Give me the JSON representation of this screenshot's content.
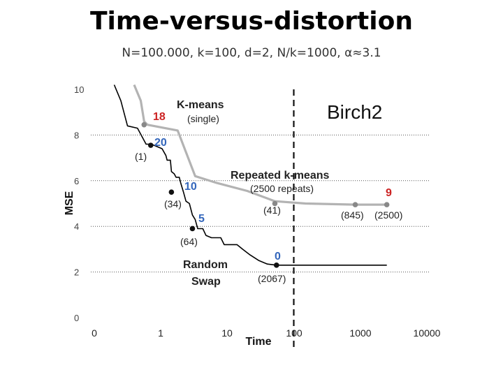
{
  "slide": {
    "title": "Time-versus-distortion",
    "subtitle": "N=100.000, k=100, d=2, N/k=1000, α≈3.1"
  },
  "chart_data": {
    "type": "line",
    "dataset_label": "Birch2",
    "xlabel": "Time",
    "ylabel": "MSE",
    "x_scale": "log",
    "x_ticks": [
      0,
      1,
      10,
      100,
      1000,
      10000
    ],
    "x_tick_labels": [
      "0",
      "1",
      "10",
      "100",
      "1000",
      "10000"
    ],
    "y_ticks": [
      0,
      2,
      4,
      6,
      8,
      10
    ],
    "y_tick_labels": [
      "0",
      "2",
      "4",
      "6",
      "8",
      "10"
    ],
    "ylim": [
      0,
      10
    ],
    "y_gridlines": [
      2,
      4,
      6,
      8
    ],
    "reference_line": {
      "x": 100,
      "style": "dashed"
    },
    "series": [
      {
        "name": "K-means (single) / Repeated k-means",
        "color": "#b3b3b3",
        "points": [
          [
            0.6,
            10.2
          ],
          [
            0.7,
            9.5
          ],
          [
            0.75,
            8.6
          ],
          [
            0.8,
            8.45
          ],
          [
            1.8,
            8.2
          ],
          [
            3.3,
            6.2
          ],
          [
            7,
            5.9
          ],
          [
            20,
            5.55
          ],
          [
            52,
            5.1
          ],
          [
            150,
            5.0
          ],
          [
            840,
            4.95
          ],
          [
            2500,
            4.95
          ]
        ]
      },
      {
        "name": "Random Swap",
        "color": "#000000",
        "points": [
          [
            0.3,
            10.2
          ],
          [
            0.4,
            9.5
          ],
          [
            0.5,
            8.4
          ],
          [
            0.65,
            8.3
          ],
          [
            0.78,
            7.6
          ],
          [
            0.85,
            7.6
          ],
          [
            0.9,
            7.55
          ],
          [
            1.05,
            7.4
          ],
          [
            1.2,
            7.1
          ],
          [
            1.25,
            6.9
          ],
          [
            1.4,
            6.9
          ],
          [
            1.45,
            6.4
          ],
          [
            1.6,
            6.3
          ],
          [
            1.7,
            6.15
          ],
          [
            1.9,
            6.15
          ],
          [
            2.0,
            5.9
          ],
          [
            2.2,
            5.5
          ],
          [
            2.4,
            5.1
          ],
          [
            2.7,
            5.0
          ],
          [
            3.0,
            4.5
          ],
          [
            3.3,
            4.3
          ],
          [
            3.6,
            3.9
          ],
          [
            4.3,
            3.9
          ],
          [
            4.8,
            3.6
          ],
          [
            5.8,
            3.5
          ],
          [
            8,
            3.5
          ],
          [
            9,
            3.2
          ],
          [
            14,
            3.2
          ],
          [
            17,
            3.0
          ],
          [
            22,
            2.75
          ],
          [
            30,
            2.5
          ],
          [
            40,
            2.35
          ],
          [
            55,
            2.3
          ],
          [
            2500,
            2.3
          ]
        ]
      }
    ],
    "annotations": [
      {
        "text": "K-means",
        "color": "#222222",
        "weight": "bold"
      },
      {
        "text": "(single)",
        "color": "#222222",
        "weight": "normal"
      },
      {
        "text": "Repeated k-means",
        "color": "#222222",
        "weight": "bold"
      },
      {
        "text": "(2500 repeats)",
        "color": "#222222",
        "weight": "normal"
      },
      {
        "text": "Random",
        "color": "#222222",
        "weight": "bold"
      },
      {
        "text": "Swap",
        "color": "#222222",
        "weight": "bold"
      },
      {
        "text": "18",
        "color": "#cc2222",
        "weight": "bold"
      },
      {
        "text": "20",
        "color": "#3366bb",
        "weight": "bold"
      },
      {
        "text": "(1)",
        "color": "#222222",
        "weight": "normal"
      },
      {
        "text": "10",
        "color": "#3366bb",
        "weight": "bold"
      },
      {
        "text": "(34)",
        "color": "#222222",
        "weight": "normal"
      },
      {
        "text": "5",
        "color": "#3366bb",
        "weight": "bold"
      },
      {
        "text": "(64)",
        "color": "#222222",
        "weight": "normal"
      },
      {
        "text": "0",
        "color": "#3366bb",
        "weight": "bold"
      },
      {
        "text": "(2067)",
        "color": "#222222",
        "weight": "normal"
      },
      {
        "text": "(41)",
        "color": "#222222",
        "weight": "normal"
      },
      {
        "text": "9",
        "color": "#cc2222",
        "weight": "bold"
      },
      {
        "text": "(845)",
        "color": "#222222",
        "weight": "normal"
      },
      {
        "text": "(2500)",
        "color": "#222222",
        "weight": "normal"
      }
    ],
    "markers": [
      {
        "series": 0,
        "x": 0.75,
        "y": 8.45
      },
      {
        "series": 1,
        "x": 0.85,
        "y": 7.55
      },
      {
        "series": 1,
        "x": 1.45,
        "y": 5.5
      },
      {
        "series": 1,
        "x": 3.0,
        "y": 3.9
      },
      {
        "series": 1,
        "x": 55,
        "y": 2.3
      },
      {
        "series": 0,
        "x": 52,
        "y": 5.0
      },
      {
        "series": 0,
        "x": 840,
        "y": 4.95
      },
      {
        "series": 0,
        "x": 2500,
        "y": 4.95
      }
    ]
  }
}
